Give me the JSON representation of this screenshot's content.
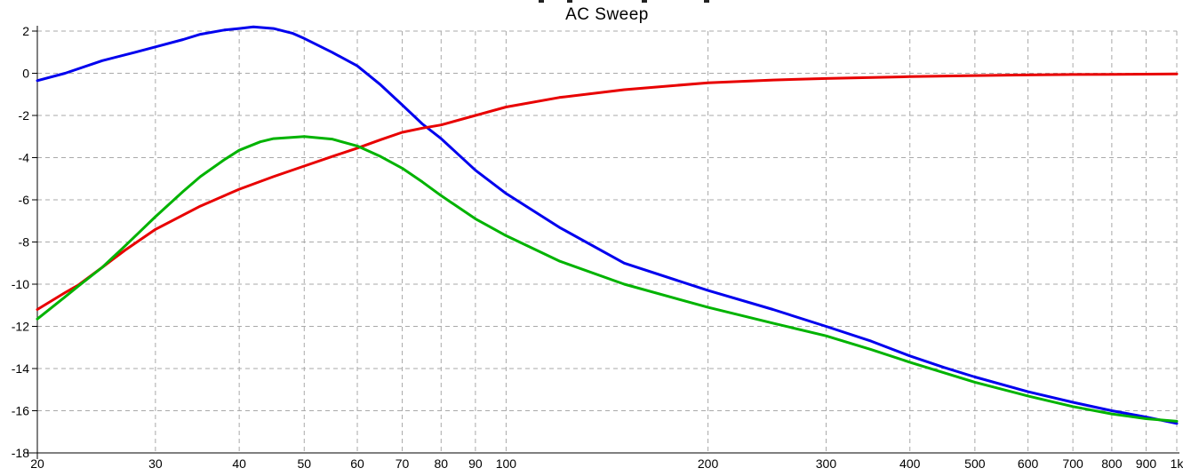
{
  "chart_data": {
    "type": "line",
    "title": "AC Sweep",
    "xlabel": "",
    "ylabel": "",
    "x_axis": {
      "scale": "log",
      "min": 20,
      "max": 1000,
      "ticks": [
        20,
        30,
        40,
        50,
        60,
        70,
        80,
        90,
        100,
        200,
        300,
        400,
        500,
        600,
        700,
        800,
        900,
        1000
      ],
      "tick_labels": [
        "20",
        "30",
        "40",
        "50",
        "60",
        "70",
        "80",
        "90",
        "100",
        "200",
        "300",
        "400",
        "500",
        "600",
        "700",
        "800",
        "900",
        "1k"
      ]
    },
    "y_axis": {
      "min": -18,
      "max": 2,
      "tick_step": 2,
      "ticks": [
        2,
        0,
        -2,
        -4,
        -6,
        -8,
        -10,
        -12,
        -14,
        -16,
        -18
      ]
    },
    "grid": {
      "show": true,
      "style": "dashed",
      "color": "#a9a9a9"
    },
    "legend": {
      "show": false
    },
    "series": [
      {
        "name": "blue",
        "color": "#0000ee",
        "points": [
          [
            20,
            -0.35
          ],
          [
            22,
            0.0
          ],
          [
            25,
            0.6
          ],
          [
            28,
            1.0
          ],
          [
            30,
            1.25
          ],
          [
            33,
            1.6
          ],
          [
            35,
            1.85
          ],
          [
            38,
            2.05
          ],
          [
            40,
            2.12
          ],
          [
            42,
            2.2
          ],
          [
            45,
            2.12
          ],
          [
            48,
            1.9
          ],
          [
            50,
            1.65
          ],
          [
            55,
            1.0
          ],
          [
            60,
            0.35
          ],
          [
            65,
            -0.55
          ],
          [
            70,
            -1.5
          ],
          [
            75,
            -2.4
          ],
          [
            80,
            -3.1
          ],
          [
            90,
            -4.6
          ],
          [
            100,
            -5.7
          ],
          [
            120,
            -7.3
          ],
          [
            150,
            -9.0
          ],
          [
            200,
            -10.3
          ],
          [
            250,
            -11.2
          ],
          [
            300,
            -12.0
          ],
          [
            350,
            -12.7
          ],
          [
            400,
            -13.4
          ],
          [
            450,
            -13.95
          ],
          [
            500,
            -14.4
          ],
          [
            600,
            -15.1
          ],
          [
            700,
            -15.6
          ],
          [
            800,
            -16.0
          ],
          [
            900,
            -16.3
          ],
          [
            1000,
            -16.6
          ]
        ]
      },
      {
        "name": "red",
        "color": "#e80000",
        "points": [
          [
            20,
            -11.2
          ],
          [
            22,
            -10.4
          ],
          [
            23,
            -10.05
          ],
          [
            25,
            -9.2
          ],
          [
            27,
            -8.4
          ],
          [
            30,
            -7.4
          ],
          [
            35,
            -6.3
          ],
          [
            40,
            -5.5
          ],
          [
            45,
            -4.9
          ],
          [
            50,
            -4.4
          ],
          [
            55,
            -3.95
          ],
          [
            60,
            -3.55
          ],
          [
            65,
            -3.15
          ],
          [
            70,
            -2.8
          ],
          [
            75,
            -2.6
          ],
          [
            80,
            -2.45
          ],
          [
            90,
            -2.0
          ],
          [
            100,
            -1.6
          ],
          [
            120,
            -1.15
          ],
          [
            150,
            -0.78
          ],
          [
            200,
            -0.45
          ],
          [
            250,
            -0.32
          ],
          [
            300,
            -0.25
          ],
          [
            400,
            -0.16
          ],
          [
            500,
            -0.11
          ],
          [
            600,
            -0.08
          ],
          [
            700,
            -0.06
          ],
          [
            800,
            -0.05
          ],
          [
            900,
            -0.04
          ],
          [
            1000,
            -0.03
          ]
        ]
      },
      {
        "name": "green",
        "color": "#00b300",
        "points": [
          [
            20,
            -11.65
          ],
          [
            22,
            -10.6
          ],
          [
            23,
            -10.1
          ],
          [
            25,
            -9.2
          ],
          [
            27,
            -8.2
          ],
          [
            30,
            -6.8
          ],
          [
            33,
            -5.6
          ],
          [
            35,
            -4.9
          ],
          [
            38,
            -4.1
          ],
          [
            40,
            -3.65
          ],
          [
            43,
            -3.25
          ],
          [
            45,
            -3.1
          ],
          [
            50,
            -3.0
          ],
          [
            55,
            -3.12
          ],
          [
            60,
            -3.45
          ],
          [
            65,
            -3.95
          ],
          [
            70,
            -4.5
          ],
          [
            75,
            -5.15
          ],
          [
            80,
            -5.8
          ],
          [
            90,
            -6.9
          ],
          [
            100,
            -7.7
          ],
          [
            120,
            -8.9
          ],
          [
            150,
            -10.0
          ],
          [
            200,
            -11.1
          ],
          [
            250,
            -11.85
          ],
          [
            300,
            -12.45
          ],
          [
            350,
            -13.1
          ],
          [
            400,
            -13.7
          ],
          [
            500,
            -14.65
          ],
          [
            600,
            -15.3
          ],
          [
            700,
            -15.8
          ],
          [
            800,
            -16.15
          ],
          [
            900,
            -16.38
          ],
          [
            1000,
            -16.5
          ]
        ]
      }
    ]
  },
  "decorations": {
    "top_edge_marks_x": [
      606,
      638,
      722,
      792
    ]
  }
}
